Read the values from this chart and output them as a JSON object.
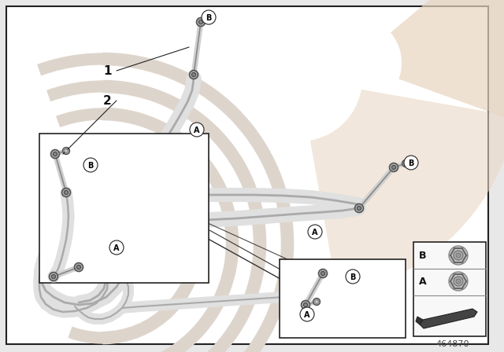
{
  "bg_color": "#e8e8e8",
  "main_bg": "#ffffff",
  "border_color": "#222222",
  "part_color": "#d0d0d0",
  "part_edge": "#888888",
  "dark_part": "#666666",
  "label_color": "#000000",
  "wm_color1": "#ddd0c0",
  "wm_color2": "#c8bdb0",
  "part_number": "464870",
  "legend_B": "B",
  "legend_A": "A",
  "num1": "1",
  "num2": "2"
}
